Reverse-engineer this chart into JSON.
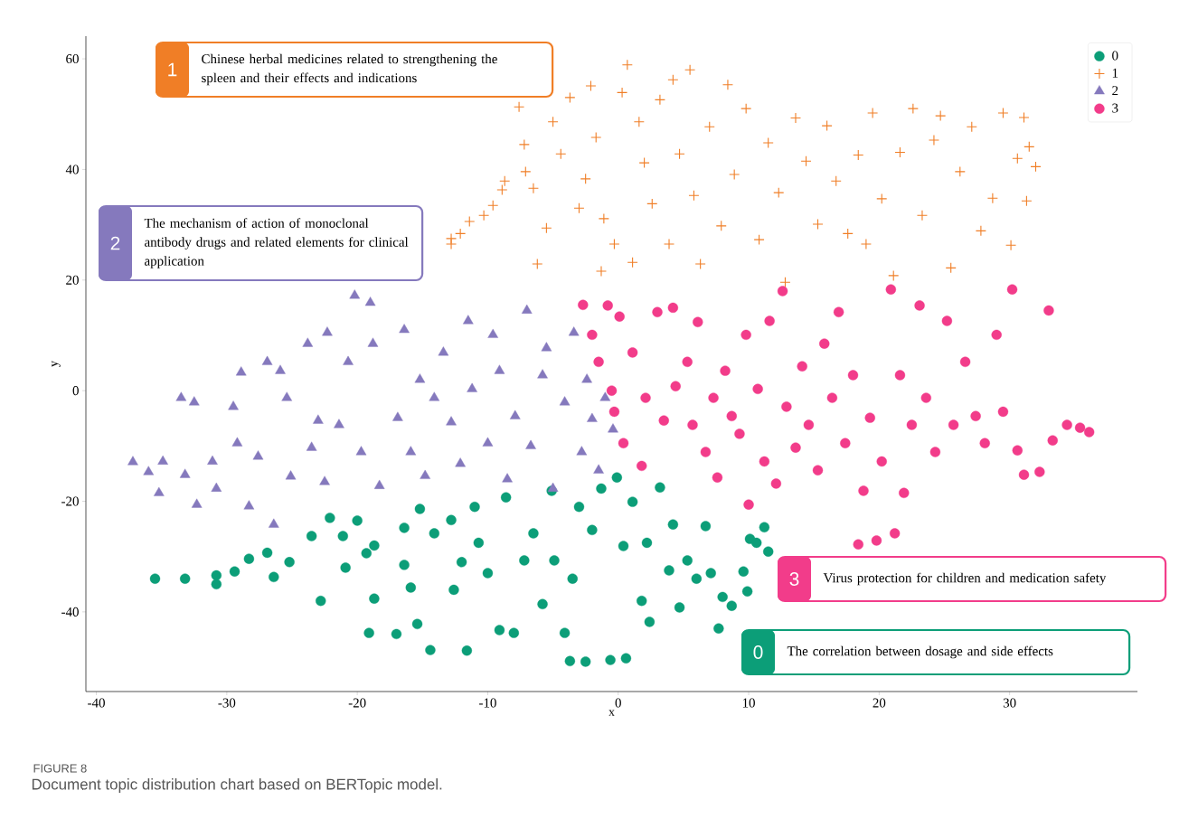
{
  "chart_data": {
    "type": "scatter",
    "xlabel": "x",
    "ylabel": "y",
    "xlim": [
      -40.8,
      39.8
    ],
    "ylim": [
      -54.4,
      64.1
    ],
    "xticks": [
      -40,
      -30,
      -20,
      -10,
      0,
      10,
      20,
      30
    ],
    "yticks": [
      -40,
      -20,
      0,
      20,
      40,
      60
    ],
    "grid": false,
    "legend": "top right",
    "annotations": [
      "1",
      "Chinese herbal medicines related to strengthening the spleen and their effects and indications",
      "2",
      "The mechanism of action of monoclonal antibody drugs and related elements for clinical application",
      "3",
      "Virus protection for children and medication safety",
      "0",
      "The correlation between dosage and side effects",
      "FIGURE 8",
      "Document topic distribution chart based on BERTopic model."
    ],
    "series": [
      {
        "name": "0",
        "color": "#0c9e78",
        "marker": "circle",
        "x": [
          -35.5,
          -33.2,
          -30.8,
          -30.8,
          -29.4,
          -28.3,
          -26.9,
          -26.4,
          -25.2,
          -23.5,
          -22.8,
          -22.1,
          -21.1,
          -20,
          -20.9,
          -19.3,
          -19.1,
          -18.7,
          -18.7,
          -17,
          -16.4,
          -16.4,
          -15.2,
          -15.9,
          -15.4,
          -14.4,
          -14.1,
          -12.8,
          -12.6,
          -12,
          -11.6,
          -11,
          -10.7,
          -10,
          -9.1,
          -8.6,
          -8,
          -7.2,
          -6.5,
          -5.8,
          -5.1,
          -4.9,
          -4.1,
          -3.7,
          -3.5,
          -3,
          -2.5,
          -2,
          -1.3,
          -0.6,
          -0.1,
          0.4,
          0.6,
          1.1,
          1.8,
          2.2,
          2.4,
          3.2,
          3.9,
          4.2,
          4.7,
          5.3,
          6,
          6.7,
          7.1,
          7.7,
          8,
          8.7,
          9.6,
          9.9,
          10.1,
          11.2,
          11.5,
          10.6
        ],
        "values": [
          -34,
          -34,
          -33.4,
          -35,
          -32.7,
          -30.4,
          -29.3,
          -33.7,
          -31,
          -26.3,
          -38,
          -23,
          -26.3,
          -23.5,
          -32,
          -29.4,
          -43.8,
          -28,
          -37.6,
          -44,
          -31.5,
          -24.8,
          -21.4,
          -35.6,
          -42.2,
          -46.9,
          -25.8,
          -23.4,
          -36,
          -31,
          -47,
          -21,
          -27.5,
          -33,
          -43.3,
          -19.3,
          -43.8,
          -30.7,
          -25.8,
          -38.6,
          -18.1,
          -30.7,
          -43.8,
          -48.9,
          -34,
          -21,
          -49,
          -25.2,
          -17.7,
          -48.7,
          -15.7,
          -28.1,
          -48.4,
          -20.1,
          -38,
          -27.5,
          -41.8,
          -17.5,
          -32.5,
          -24.2,
          -39.2,
          -30.7,
          -34,
          -24.5,
          -33,
          -43,
          -37.3,
          -38.9,
          -32.7,
          -36.3,
          -26.8,
          -24.7,
          -29.1,
          -27.5
        ]
      },
      {
        "name": "1",
        "color": "#f07e26",
        "marker": "cross",
        "x": [
          -12.8,
          -12.8,
          -12.1,
          -11.4,
          -10.3,
          -9.6,
          -8.7,
          -8.9,
          -7.6,
          -7.2,
          -7.1,
          -6.5,
          -6.2,
          -5.5,
          -5,
          -4.4,
          -3.7,
          -3,
          -2.5,
          -2.1,
          -1.7,
          -1.3,
          -1.1,
          -0.3,
          0.3,
          0.7,
          1.1,
          1.6,
          2,
          2.6,
          3.2,
          3.9,
          4.2,
          4.7,
          5.5,
          5.8,
          6.3,
          7,
          7.9,
          8.4,
          8.9,
          9.8,
          10.8,
          11.5,
          12.3,
          12.8,
          13.6,
          14.4,
          15.3,
          16,
          16.7,
          17.6,
          18.4,
          19,
          19.5,
          20.2,
          21.1,
          21.6,
          22.6,
          23.3,
          24.2,
          24.7,
          25.5,
          26.2,
          27.1,
          27.8,
          28.7,
          29.5,
          30.1,
          30.6,
          31.1,
          31.5,
          31.3,
          32
        ],
        "values": [
          27.5,
          26.5,
          28.4,
          30.6,
          31.7,
          33.5,
          37.9,
          36.3,
          51.3,
          44.5,
          39.6,
          36.6,
          22.9,
          29.4,
          48.6,
          42.8,
          53,
          33,
          38.3,
          55.1,
          45.8,
          21.6,
          31.1,
          26.5,
          53.9,
          58.9,
          23.2,
          48.6,
          41.2,
          33.8,
          52.6,
          26.5,
          56.2,
          42.8,
          58,
          35.3,
          22.9,
          47.7,
          29.8,
          55.3,
          39.1,
          51,
          27.3,
          44.8,
          35.8,
          19.6,
          49.3,
          41.5,
          30.1,
          47.9,
          37.9,
          28.4,
          42.6,
          26.5,
          50.2,
          34.7,
          20.8,
          43.1,
          51,
          31.7,
          45.3,
          49.7,
          22.2,
          39.6,
          47.7,
          28.9,
          34.8,
          50.2,
          26.3,
          42,
          49.4,
          44.1,
          34.3,
          40.5
        ]
      },
      {
        "name": "2",
        "color": "#8579bd",
        "marker": "triangle",
        "x": [
          -37.2,
          -36,
          -35.2,
          -34.9,
          -33.5,
          -32.5,
          -33.2,
          -32.3,
          -31.1,
          -30.8,
          -29.5,
          -29.2,
          -28.9,
          -28.3,
          -27.6,
          -26.9,
          -26.4,
          -25.9,
          -25.4,
          -25.1,
          -23.8,
          -23.5,
          -23,
          -22.5,
          -22.3,
          -21.4,
          -20.7,
          -20.2,
          -19.7,
          -19,
          -18.8,
          -18.3,
          -16.9,
          -16.4,
          -15.9,
          -15.2,
          -14.8,
          -14.1,
          -13.4,
          -12.8,
          -12.1,
          -11.5,
          -11.2,
          -10,
          -9.6,
          -9.1,
          -8.5,
          -7.9,
          -7,
          -6.7,
          -5.8,
          -5.5,
          -5,
          -4.1,
          -3.4,
          -2.8,
          -2.4,
          -2,
          -1.5,
          -1,
          -0.4
        ],
        "values": [
          -12.9,
          -14.7,
          -18.5,
          -12.8,
          -1.3,
          -2.1,
          -15.2,
          -20.6,
          -12.8,
          -17.7,
          -2.9,
          -9.5,
          3.3,
          -20.9,
          -11.9,
          5.2,
          -24.2,
          3.6,
          -1.3,
          -15.5,
          8.5,
          -10.3,
          -5.4,
          -16.5,
          10.5,
          -6.2,
          5.2,
          17.2,
          -11.1,
          15.9,
          8.5,
          -17.2,
          -4.9,
          11,
          -11.1,
          2,
          -15.4,
          -1.3,
          6.9,
          -5.7,
          -13.2,
          12.6,
          0.3,
          -9.5,
          10.1,
          3.6,
          -16,
          -4.6,
          14.5,
          -10,
          2.8,
          7.7,
          -17.7,
          -2.1,
          10.5,
          -11.1,
          2,
          -5.1,
          -14.4,
          -1.3,
          -7
        ]
      },
      {
        "name": "3",
        "color": "#f23c8a",
        "marker": "circle",
        "x": [
          -2.7,
          -2,
          -1.5,
          -0.8,
          -0.5,
          0.1,
          -0.3,
          0.4,
          1.1,
          1.8,
          2.1,
          3,
          3.5,
          4.2,
          4.4,
          5.3,
          5.7,
          6.1,
          6.7,
          7.3,
          7.6,
          8.2,
          8.7,
          9.3,
          9.8,
          10,
          10.7,
          11.2,
          11.6,
          12.1,
          12.6,
          12.9,
          13.6,
          14.1,
          14.6,
          15.3,
          15.8,
          16.4,
          16.9,
          17.4,
          18,
          18.4,
          18.8,
          19.3,
          19.8,
          20.2,
          20.9,
          21.2,
          21.6,
          21.9,
          22.5,
          23.1,
          23.6,
          24.3,
          25.2,
          25.7,
          26.6,
          27.4,
          28.1,
          29,
          29.5,
          30.2,
          30.6,
          31.1,
          32.3,
          33,
          33.3,
          34.4,
          35.4,
          36.1
        ],
        "values": [
          15.5,
          10.1,
          5.2,
          15.4,
          0,
          13.4,
          -3.8,
          -9.5,
          6.9,
          -13.6,
          -1.3,
          14.2,
          -5.4,
          15,
          0.8,
          5.2,
          -6.2,
          12.4,
          -11.1,
          -1.3,
          -15.7,
          3.6,
          -4.6,
          -7.8,
          10.1,
          -20.6,
          0.3,
          -12.8,
          12.6,
          -16.8,
          18,
          -2.9,
          -10.3,
          4.4,
          -6.2,
          -14.4,
          8.5,
          -1.3,
          14.2,
          -9.5,
          2.8,
          -27.8,
          -18.1,
          -4.9,
          -27.1,
          -12.8,
          18.3,
          -25.8,
          2.8,
          -18.5,
          -6.2,
          15.4,
          -1.3,
          -11.1,
          12.6,
          -6.2,
          5.2,
          -4.6,
          -9.5,
          10.1,
          -3.8,
          18.3,
          -10.8,
          -15.2,
          -14.7,
          14.5,
          -9,
          -6.2,
          -6.7,
          -7.5
        ]
      }
    ]
  }
}
